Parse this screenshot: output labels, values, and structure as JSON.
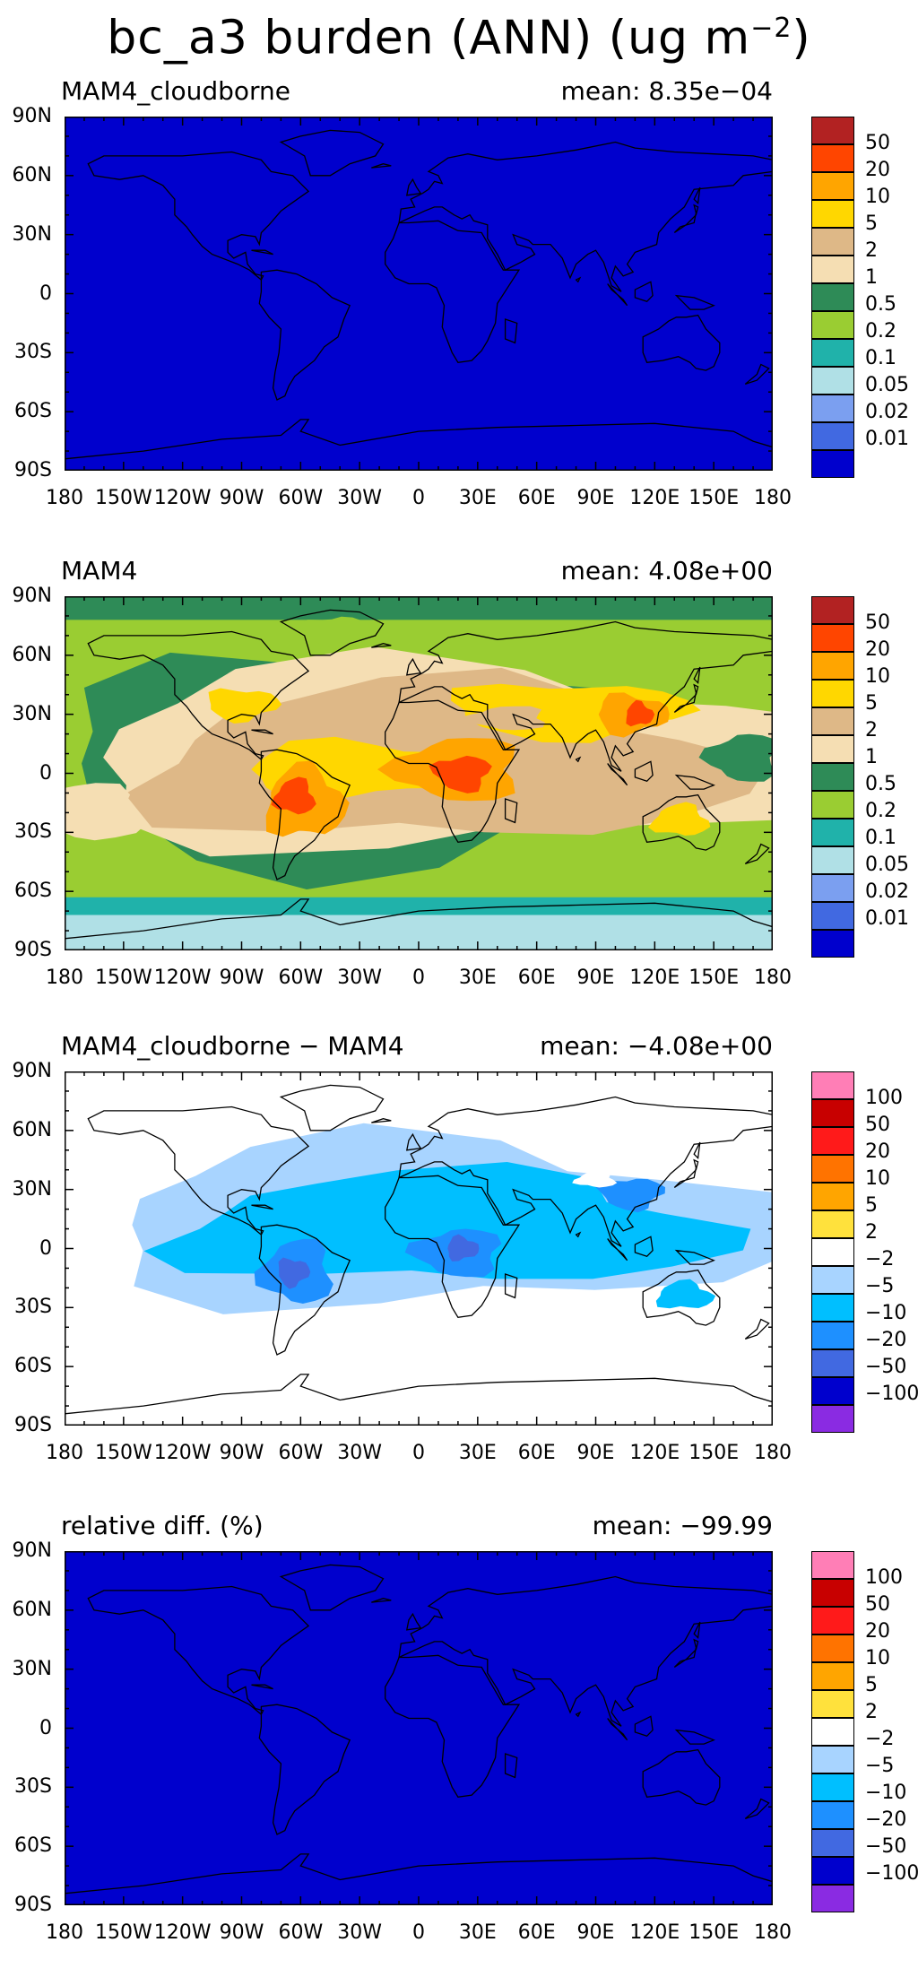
{
  "figure": {
    "title_main": "bc_a3 burden (ANN) (ug m",
    "title_exponent": "−2",
    "title_close": ")"
  },
  "axes": {
    "lat_labels": [
      "90N",
      "60N",
      "30N",
      "0",
      "30S",
      "60S",
      "90S"
    ],
    "lon_labels": [
      "180",
      "150W",
      "120W",
      "90W",
      "60W",
      "30W",
      "0",
      "30E",
      "60E",
      "90E",
      "120E",
      "150E",
      "180"
    ]
  },
  "panels": [
    {
      "title": "MAM4_cloudborne",
      "mean": "mean: 8.35e−04",
      "scale": "burden",
      "fill": "uniform",
      "fill_color": "#0000cd"
    },
    {
      "title": "MAM4",
      "mean": "mean: 4.08e+00",
      "scale": "burden",
      "fill": "burden-field"
    },
    {
      "title": "MAM4_cloudborne − MAM4",
      "mean": "mean: −4.08e+00",
      "scale": "diff",
      "fill": "diff-field"
    },
    {
      "title": "relative diff. (%)",
      "mean": "mean: −99.99",
      "scale": "diff",
      "fill": "uniform",
      "fill_color": "#0000cd"
    }
  ],
  "colorbars": {
    "burden": {
      "colors": [
        "#b22222",
        "#ff4500",
        "#ffa500",
        "#ffd700",
        "#deb887",
        "#f5deb3",
        "#2e8b57",
        "#9acd32",
        "#20b2aa",
        "#b0e0e6",
        "#7b9ff0",
        "#4169e1",
        "#0000cd"
      ],
      "labels": [
        "50",
        "20",
        "10",
        "5",
        "2",
        "1",
        "0.5",
        "0.2",
        "0.1",
        "0.05",
        "0.02",
        "0.01"
      ]
    },
    "diff": {
      "colors": [
        "#ff7eb6",
        "#c80000",
        "#ff1a1a",
        "#ff7300",
        "#ffa500",
        "#ffe13c",
        "#ffffff",
        "#a8d4ff",
        "#00bfff",
        "#1e90ff",
        "#4169e1",
        "#0000cd",
        "#8a2be2"
      ],
      "labels": [
        "100",
        "50",
        "20",
        "10",
        "5",
        "2",
        "−2",
        "−5",
        "−10",
        "−20",
        "−50",
        "−100"
      ]
    }
  }
}
